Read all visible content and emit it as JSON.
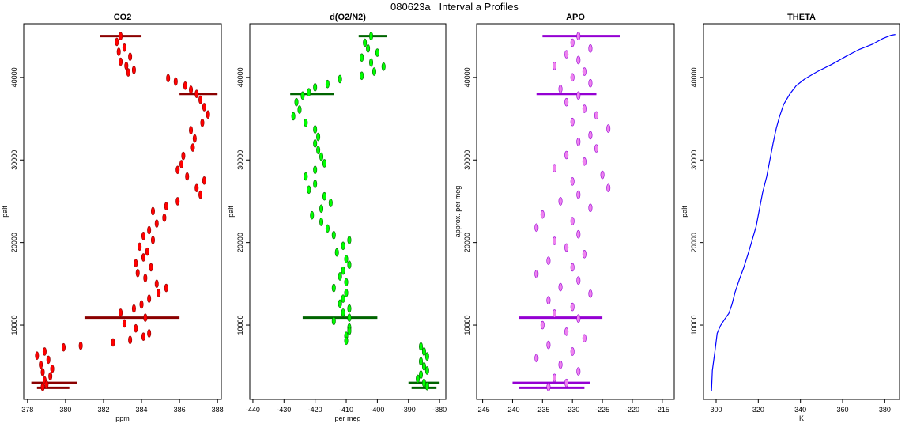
{
  "page_title": "080623a   Interval a Profiles",
  "chart_data": [
    {
      "type": "scatter",
      "title": "CO2",
      "xlabel": "ppm",
      "ylabel": "palt",
      "xlim": [
        377.8,
        388.2
      ],
      "ylim": [
        1000,
        46500
      ],
      "xticks": [
        378,
        380,
        382,
        384,
        386,
        388
      ],
      "yticks": [
        10000,
        20000,
        30000,
        40000
      ],
      "colors": {
        "fill": "#ff0000",
        "edge": "#8b0000"
      },
      "points": [
        [
          382.9,
          45000
        ],
        [
          382.7,
          44300
        ],
        [
          383.1,
          43600
        ],
        [
          382.8,
          43100
        ],
        [
          383.4,
          42500
        ],
        [
          382.9,
          41900
        ],
        [
          383.2,
          41400
        ],
        [
          383.6,
          40900
        ],
        [
          383.3,
          40600
        ],
        [
          385.4,
          39900
        ],
        [
          385.8,
          39500
        ],
        [
          386.3,
          39000
        ],
        [
          386.6,
          38500
        ],
        [
          386.9,
          38000
        ],
        [
          387.1,
          37300
        ],
        [
          387.3,
          36400
        ],
        [
          387.5,
          35500
        ],
        [
          387.2,
          34500
        ],
        [
          386.6,
          33600
        ],
        [
          386.8,
          32600
        ],
        [
          386.7,
          31500
        ],
        [
          386.2,
          30500
        ],
        [
          386.1,
          29500
        ],
        [
          385.9,
          28800
        ],
        [
          386.4,
          28000
        ],
        [
          387.3,
          27500
        ],
        [
          386.9,
          26600
        ],
        [
          387.1,
          25800
        ],
        [
          385.9,
          25000
        ],
        [
          385.3,
          24400
        ],
        [
          384.6,
          23800
        ],
        [
          385.2,
          23000
        ],
        [
          384.8,
          22300
        ],
        [
          384.4,
          21500
        ],
        [
          384.1,
          20800
        ],
        [
          384.6,
          20300
        ],
        [
          383.9,
          19500
        ],
        [
          384.3,
          18900
        ],
        [
          384.1,
          18200
        ],
        [
          383.7,
          17500
        ],
        [
          384.5,
          17000
        ],
        [
          383.8,
          16300
        ],
        [
          384.2,
          15700
        ],
        [
          384.8,
          15000
        ],
        [
          385.3,
          14500
        ],
        [
          384.9,
          13900
        ],
        [
          384.4,
          13200
        ],
        [
          384.0,
          12500
        ],
        [
          383.6,
          12000
        ],
        [
          382.9,
          11500
        ],
        [
          384.2,
          10900
        ],
        [
          383.1,
          10200
        ],
        [
          383.7,
          9600
        ],
        [
          384.4,
          9000
        ],
        [
          384.1,
          8600
        ],
        [
          383.4,
          8200
        ],
        [
          382.5,
          7900
        ],
        [
          380.8,
          7500
        ],
        [
          379.9,
          7300
        ],
        [
          378.9,
          6800
        ],
        [
          378.5,
          6300
        ],
        [
          379.1,
          5800
        ],
        [
          378.7,
          5200
        ],
        [
          379.3,
          4700
        ],
        [
          378.8,
          4300
        ],
        [
          379.2,
          3800
        ],
        [
          378.9,
          3300
        ],
        [
          379.0,
          2800
        ],
        [
          378.8,
          2500
        ]
      ],
      "lines": [
        {
          "y": 45000,
          "x": [
            381.8,
            384.0
          ]
        },
        {
          "y": 38000,
          "x": [
            386.0,
            388.0
          ]
        },
        {
          "y": 10900,
          "x": [
            381.0,
            386.0
          ]
        },
        {
          "y": 3000,
          "x": [
            378.2,
            380.6
          ]
        },
        {
          "y": 2400,
          "x": [
            378.5,
            380.2
          ]
        }
      ]
    },
    {
      "type": "scatter",
      "title": "d(O2/N2)",
      "xlabel": "per meg",
      "ylabel": "palt",
      "xlim": [
        -441,
        -378
      ],
      "ylim": [
        1000,
        46500
      ],
      "xticks": [
        -440,
        -430,
        -420,
        -410,
        -400,
        -390,
        -380
      ],
      "yticks": [
        10000,
        20000,
        30000,
        40000
      ],
      "colors": {
        "fill": "#00ff00",
        "edge": "#006400"
      },
      "points": [
        [
          -402,
          45000
        ],
        [
          -404,
          44200
        ],
        [
          -403,
          43500
        ],
        [
          -400,
          43000
        ],
        [
          -405,
          42400
        ],
        [
          -402,
          41800
        ],
        [
          -398,
          41300
        ],
        [
          -401,
          40700
        ],
        [
          -405,
          40200
        ],
        [
          -412,
          39800
        ],
        [
          -416,
          39200
        ],
        [
          -420,
          38800
        ],
        [
          -422,
          38200
        ],
        [
          -424,
          37800
        ],
        [
          -426,
          37000
        ],
        [
          -425,
          36100
        ],
        [
          -427,
          35300
        ],
        [
          -423,
          34500
        ],
        [
          -420,
          33700
        ],
        [
          -419,
          32800
        ],
        [
          -420,
          32000
        ],
        [
          -419,
          31200
        ],
        [
          -418,
          30400
        ],
        [
          -417,
          29600
        ],
        [
          -420,
          28800
        ],
        [
          -423,
          28000
        ],
        [
          -420,
          27100
        ],
        [
          -422,
          26400
        ],
        [
          -417,
          25600
        ],
        [
          -415,
          24800
        ],
        [
          -418,
          24100
        ],
        [
          -421,
          23300
        ],
        [
          -418,
          22500
        ],
        [
          -416,
          21700
        ],
        [
          -414,
          20900
        ],
        [
          -409,
          20300
        ],
        [
          -411,
          19600
        ],
        [
          -413,
          18800
        ],
        [
          -410,
          18000
        ],
        [
          -409,
          17300
        ],
        [
          -411,
          16600
        ],
        [
          -412,
          15900
        ],
        [
          -410,
          15200
        ],
        [
          -414,
          14500
        ],
        [
          -410,
          13900
        ],
        [
          -411,
          13200
        ],
        [
          -412,
          12600
        ],
        [
          -409,
          12000
        ],
        [
          -411,
          11500
        ],
        [
          -409,
          10900
        ],
        [
          -414,
          10500
        ],
        [
          -409,
          9700
        ],
        [
          -409,
          9300
        ],
        [
          -410,
          8700
        ],
        [
          -410,
          8100
        ],
        [
          -386,
          7400
        ],
        [
          -385,
          6800
        ],
        [
          -384,
          6200
        ],
        [
          -386,
          5600
        ],
        [
          -385,
          5000
        ],
        [
          -384,
          4500
        ],
        [
          -386,
          4000
        ],
        [
          -387,
          3500
        ],
        [
          -385,
          3000
        ],
        [
          -384,
          2600
        ]
      ],
      "lines": [
        {
          "y": 45000,
          "x": [
            -406,
            -397
          ]
        },
        {
          "y": 38000,
          "x": [
            -428,
            -414
          ]
        },
        {
          "y": 10900,
          "x": [
            -424,
            -400
          ]
        },
        {
          "y": 3000,
          "x": [
            -390,
            -380
          ]
        },
        {
          "y": 2400,
          "x": [
            -389,
            -381
          ]
        }
      ]
    },
    {
      "type": "scatter",
      "title": "APO",
      "xlabel": "",
      "ylabel": "approx. per meg",
      "xlim": [
        -246,
        -213
      ],
      "ylim": [
        1000,
        46500
      ],
      "xticks": [
        -245,
        -240,
        -235,
        -230,
        -225,
        -220,
        -215
      ],
      "yticks": [
        10000,
        20000,
        30000,
        40000
      ],
      "colors": {
        "fill": "#ee82ee",
        "edge": "#9400d3"
      },
      "points": [
        [
          -229,
          45000
        ],
        [
          -230,
          44200
        ],
        [
          -227,
          43500
        ],
        [
          -231,
          42800
        ],
        [
          -229,
          42100
        ],
        [
          -233,
          41400
        ],
        [
          -228,
          40700
        ],
        [
          -230,
          40000
        ],
        [
          -227,
          39300
        ],
        [
          -232,
          38600
        ],
        [
          -229,
          37800
        ],
        [
          -231,
          37000
        ],
        [
          -228,
          36200
        ],
        [
          -226,
          35400
        ],
        [
          -230,
          34600
        ],
        [
          -224,
          33800
        ],
        [
          -227,
          33000
        ],
        [
          -229,
          32200
        ],
        [
          -226,
          31400
        ],
        [
          -231,
          30600
        ],
        [
          -228,
          29800
        ],
        [
          -233,
          29000
        ],
        [
          -225,
          28200
        ],
        [
          -230,
          27400
        ],
        [
          -224,
          26600
        ],
        [
          -229,
          25800
        ],
        [
          -232,
          25000
        ],
        [
          -227,
          24200
        ],
        [
          -235,
          23400
        ],
        [
          -230,
          22600
        ],
        [
          -236,
          21800
        ],
        [
          -229,
          21000
        ],
        [
          -233,
          20200
        ],
        [
          -231,
          19400
        ],
        [
          -228,
          18600
        ],
        [
          -234,
          17800
        ],
        [
          -230,
          17000
        ],
        [
          -236,
          16200
        ],
        [
          -229,
          15400
        ],
        [
          -232,
          14600
        ],
        [
          -227,
          13800
        ],
        [
          -234,
          13000
        ],
        [
          -230,
          12200
        ],
        [
          -233,
          11400
        ],
        [
          -229,
          10800
        ],
        [
          -235,
          10000
        ],
        [
          -231,
          9200
        ],
        [
          -228,
          8400
        ],
        [
          -234,
          7600
        ],
        [
          -230,
          6800
        ],
        [
          -236,
          6000
        ],
        [
          -232,
          5200
        ],
        [
          -229,
          4400
        ],
        [
          -233,
          3600
        ],
        [
          -231,
          3000
        ],
        [
          -234,
          2500
        ]
      ],
      "lines": [
        {
          "y": 45000,
          "x": [
            -235,
            -222
          ]
        },
        {
          "y": 38000,
          "x": [
            -236,
            -226
          ]
        },
        {
          "y": 10900,
          "x": [
            -239,
            -225
          ]
        },
        {
          "y": 3000,
          "x": [
            -240,
            -227
          ]
        },
        {
          "y": 2400,
          "x": [
            -239,
            -228
          ]
        }
      ]
    },
    {
      "type": "line",
      "title": "THETA",
      "xlabel": "K",
      "ylabel": "palt",
      "xlim": [
        294,
        387
      ],
      "ylim": [
        1000,
        46500
      ],
      "xticks": [
        300,
        320,
        340,
        360,
        380
      ],
      "yticks": [
        10000,
        20000,
        30000,
        40000
      ],
      "colors": {
        "line": "#0000ff"
      },
      "x": [
        297.8,
        298.2,
        299.5,
        300.5,
        302.0,
        304.0,
        306.0,
        307.5,
        309.0,
        311.0,
        313.0,
        315.0,
        317.0,
        319.0,
        320.5,
        322.0,
        324.0,
        325.5,
        327.0,
        328.5,
        330.0,
        332.0,
        335.0,
        338.0,
        342.0,
        348.0,
        355.0,
        362.0,
        368.0,
        374.0,
        379.0,
        383.0,
        385.0
      ],
      "y": [
        2000,
        4500,
        7000,
        9000,
        9900,
        10700,
        11400,
        12500,
        14000,
        15500,
        16900,
        18500,
        20200,
        22000,
        24000,
        26000,
        28000,
        30000,
        32000,
        33800,
        35200,
        36700,
        38000,
        39000,
        39800,
        40700,
        41600,
        42600,
        43400,
        44000,
        44700,
        45100,
        45200
      ]
    }
  ]
}
